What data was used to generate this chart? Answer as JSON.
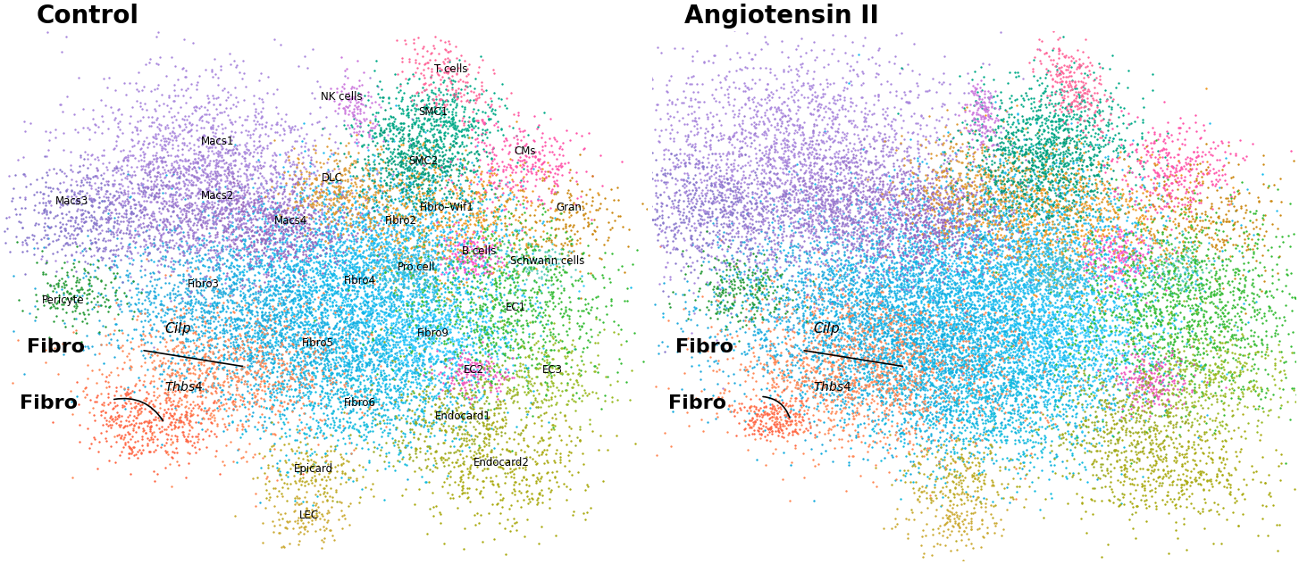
{
  "title_left": "Control",
  "title_right": "Angiotensin II",
  "title_fontsize": 20,
  "title_fontweight": "bold",
  "background_color": "#ffffff",
  "dot_size": 3.0,
  "cell_types": {
    "T cells": {
      "color": "#FF6699"
    },
    "NK cells": {
      "color": "#CC77DD"
    },
    "Macs1": {
      "color": "#AA88DD"
    },
    "Macs2": {
      "color": "#9977CC"
    },
    "Macs3": {
      "color": "#8877CC"
    },
    "Macs4": {
      "color": "#9966BB"
    },
    "DLC": {
      "color": "#DD9933"
    },
    "SMC1": {
      "color": "#00AA88"
    },
    "SMC2": {
      "color": "#009977"
    },
    "CMs": {
      "color": "#FF55AA"
    },
    "Fibro-Wif1": {
      "color": "#EE9922"
    },
    "Gran.": {
      "color": "#CC8811"
    },
    "B cells": {
      "color": "#FF55CC"
    },
    "Schwann cells": {
      "color": "#55CCBB"
    },
    "Pro.cell": {
      "color": "#44BBCC"
    },
    "Fibro2": {
      "color": "#22BBEE"
    },
    "Fibro3": {
      "color": "#22AADD"
    },
    "Fibro4": {
      "color": "#11BBEE"
    },
    "Fibro5": {
      "color": "#11AADD"
    },
    "Fibro6": {
      "color": "#11BBDD"
    },
    "Fibro9": {
      "color": "#33CCFF"
    },
    "FibroCilp": {
      "color": "#FF8855"
    },
    "FibroThbs4": {
      "color": "#FF6644"
    },
    "EC1": {
      "color": "#33BB33"
    },
    "EC2": {
      "color": "#EE55BB"
    },
    "EC3": {
      "color": "#99BB22"
    },
    "Endocard1": {
      "color": "#99AA22"
    },
    "Endocard2": {
      "color": "#AAAA11"
    },
    "Epicard": {
      "color": "#BBAA22"
    },
    "LEC": {
      "color": "#CCAA33"
    },
    "Pericyte": {
      "color": "#229933"
    }
  },
  "seed": 42
}
